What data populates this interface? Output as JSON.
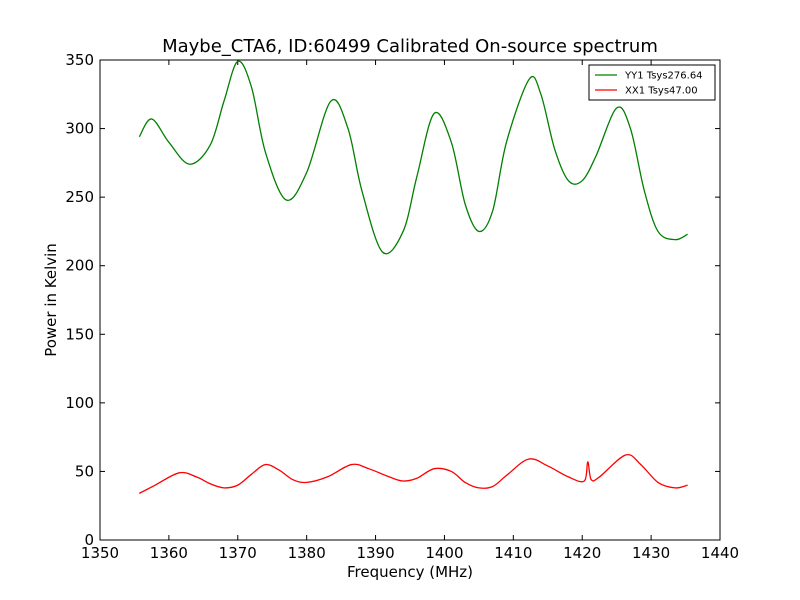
{
  "chart_data": {
    "type": "line",
    "title": "Maybe_CTA6, ID:60499 Calibrated On-source spectrum",
    "xlabel": "Frequency (MHz)",
    "ylabel": "Power in Kelvin",
    "xlim": [
      1350,
      1440
    ],
    "ylim": [
      0,
      350
    ],
    "xticks": [
      1350,
      1360,
      1370,
      1380,
      1390,
      1400,
      1410,
      1420,
      1430,
      1440
    ],
    "yticks": [
      0,
      50,
      100,
      150,
      200,
      250,
      300,
      350
    ],
    "grid": false,
    "legend_position": "top-right",
    "series": [
      {
        "name": "YY1 Tsys276.64",
        "color": "#008000",
        "x": [
          1355.7,
          1357.5,
          1360,
          1363,
          1366,
          1368,
          1370,
          1372,
          1374,
          1377,
          1380,
          1383.5,
          1386,
          1388,
          1391,
          1394,
          1396,
          1398.5,
          1401,
          1403,
          1405,
          1407,
          1409,
          1412.3,
          1414,
          1416,
          1418,
          1420,
          1422,
          1425,
          1427,
          1429,
          1431,
          1433.5,
          1435.3
        ],
        "values": [
          294,
          307,
          290,
          274,
          288,
          320,
          349,
          330,
          283,
          248,
          268,
          320,
          300,
          255,
          210,
          225,
          265,
          311,
          290,
          245,
          225,
          240,
          290,
          336,
          325,
          285,
          262,
          262,
          280,
          315,
          300,
          255,
          225,
          219,
          223
        ]
      },
      {
        "name": "XX1 Tsys47.00",
        "color": "#ff0000",
        "x": [
          1355.7,
          1358,
          1361.5,
          1364,
          1366,
          1368,
          1370,
          1372,
          1374,
          1376,
          1378,
          1380,
          1383,
          1386.5,
          1389,
          1392,
          1394,
          1396,
          1398.5,
          1401,
          1403,
          1405,
          1407,
          1409,
          1412.2,
          1415,
          1418,
          1420.3,
          1420.8,
          1421.3,
          1422.5,
          1426.3,
          1428.5,
          1431,
          1433.5,
          1435.3
        ],
        "values": [
          34,
          40,
          49,
          46,
          41,
          38,
          40,
          48,
          55,
          51,
          44,
          42,
          46,
          55,
          52,
          46,
          43,
          45,
          52,
          50,
          42,
          38,
          39,
          47,
          59,
          54,
          46,
          43,
          57,
          44,
          46,
          62,
          55,
          42,
          38,
          40
        ]
      }
    ]
  }
}
